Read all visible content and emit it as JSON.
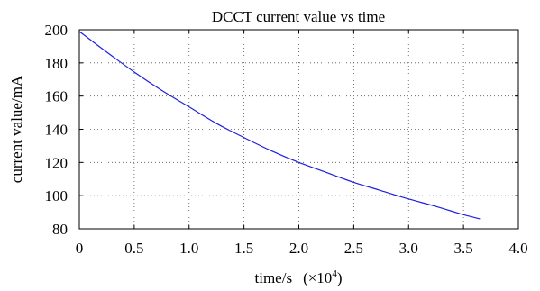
{
  "chart_data": {
    "type": "line",
    "title": "DCCT current value vs time",
    "xlabel": "time/s",
    "xlabel_multiplier": "(×10",
    "xlabel_exponent": "4",
    "xlabel_close": ")",
    "ylabel": "current value/mA",
    "xlim": [
      0,
      4.0
    ],
    "ylim": [
      80,
      200
    ],
    "xticks": [
      0,
      0.5,
      1.0,
      1.5,
      2.0,
      2.5,
      3.0,
      3.5,
      4.0
    ],
    "xtick_labels": [
      "0",
      "0.5",
      "1.0",
      "1.5",
      "2.0",
      "2.5",
      "3.0",
      "3.5",
      "4.0"
    ],
    "yticks": [
      80,
      100,
      120,
      140,
      160,
      180,
      200
    ],
    "ytick_labels": [
      "80",
      "100",
      "120",
      "140",
      "160",
      "180",
      "200"
    ],
    "grid": true,
    "series": [
      {
        "color": "#1f1fe0",
        "x": [
          0,
          0.25,
          0.5,
          0.75,
          1.0,
          1.25,
          1.5,
          1.75,
          2.0,
          2.25,
          2.5,
          2.75,
          3.0,
          3.25,
          3.5,
          3.65
        ],
        "y": [
          199,
          186.5,
          174.5,
          163.5,
          153.5,
          143.5,
          135,
          127,
          120,
          114,
          108,
          103,
          98,
          93.5,
          88.5,
          86
        ]
      }
    ]
  }
}
